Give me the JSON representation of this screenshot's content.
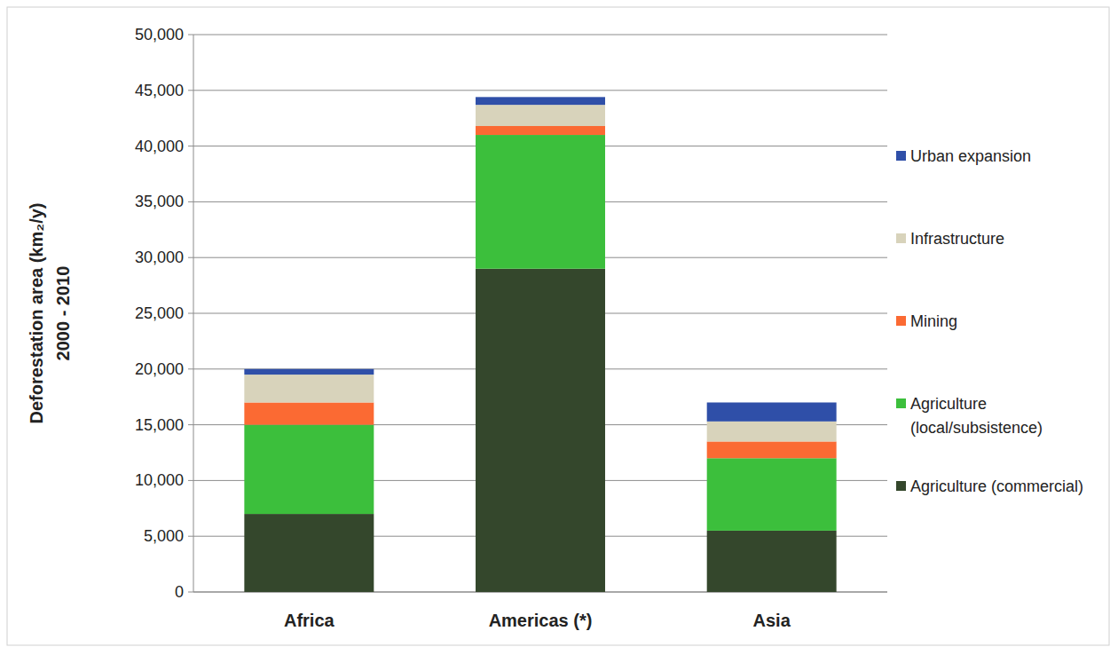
{
  "chart_data": {
    "type": "bar",
    "stacked": true,
    "grid": true,
    "legend": "right",
    "y_label": [
      "Deforestation area (km₂/y)",
      "2000 - 2010"
    ],
    "categories": [
      "Africa",
      "Americas (*)",
      "Asia"
    ],
    "ylim": [
      0,
      50000
    ],
    "yticks": [
      0,
      {
        "value": 5000,
        "label": "5,000"
      },
      {
        "value": 10000,
        "label": "10,000"
      },
      {
        "value": 15000,
        "label": "15,000"
      },
      {
        "value": 20000,
        "label": "20,000"
      },
      {
        "value": 25000,
        "label": "25,000"
      },
      {
        "value": 30000,
        "label": "30,000"
      },
      {
        "value": 35000,
        "label": "35,000"
      },
      {
        "value": 40000,
        "label": "40,000"
      },
      {
        "value": 45000,
        "label": "45,000"
      },
      {
        "value": 50000,
        "label": "50,000"
      }
    ],
    "series": [
      {
        "name": "Agriculture (commercial)",
        "color": "#34472c",
        "values": [
          7000,
          29000,
          5500
        ]
      },
      {
        "name": "Agriculture (local/subsistence)",
        "color": "#3cbf3c",
        "values": [
          8000,
          12000,
          6500
        ]
      },
      {
        "name": "Mining",
        "color": "#fb6a33",
        "values": [
          2000,
          800,
          1500
        ]
      },
      {
        "name": "Infrastructure",
        "color": "#d8d3bb",
        "values": [
          2500,
          1900,
          1800
        ]
      },
      {
        "name": "Urban expansion",
        "color": "#2f4fa8",
        "values": [
          500,
          700,
          1700
        ]
      }
    ]
  }
}
